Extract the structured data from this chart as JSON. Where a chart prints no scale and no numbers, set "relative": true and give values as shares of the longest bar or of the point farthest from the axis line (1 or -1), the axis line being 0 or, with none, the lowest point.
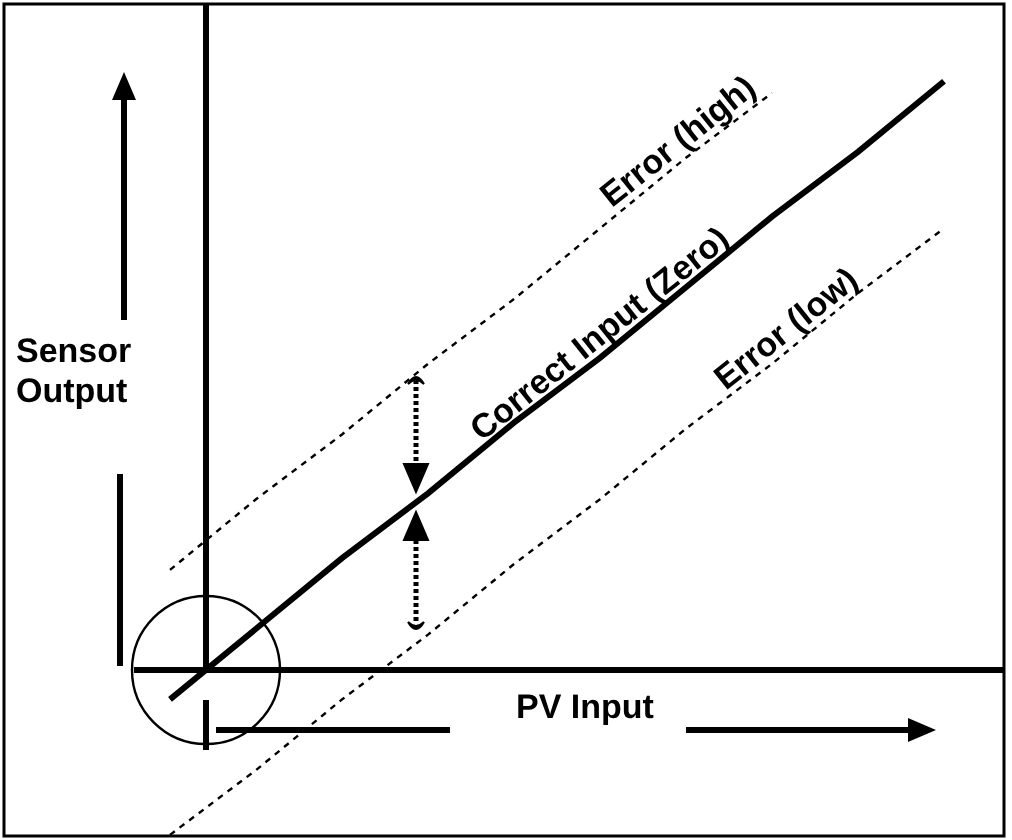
{
  "chart_data": {
    "type": "line",
    "relative": true,
    "xlabel": "PV Input",
    "ylabel": "Sensor Output",
    "categories": [
      null,
      null,
      null,
      null,
      null,
      null,
      null,
      null,
      null,
      null
    ],
    "series": [
      {
        "name": "Error (high)",
        "color": "#000000",
        "line_style": "dotted",
        "values": [
          0.17,
          0.29,
          0.4,
          0.52,
          0.63,
          0.75,
          0.87,
          0.98,
          null,
          null
        ]
      },
      {
        "name": "Correct Input (Zero)",
        "color": "#000000",
        "line_style": "solid",
        "values": [
          -0.05,
          0.07,
          0.19,
          0.3,
          0.42,
          0.53,
          0.65,
          0.77,
          0.88,
          1
        ]
      },
      {
        "name": "Error (low)",
        "color": "#000000",
        "line_style": "dotted",
        "values": [
          -0.28,
          -0.17,
          -0.05,
          0.06,
          0.18,
          0.29,
          0.41,
          0.52,
          0.64,
          0.75
        ]
      }
    ],
    "legend": false,
    "grid": false,
    "marker": "none"
  }
}
